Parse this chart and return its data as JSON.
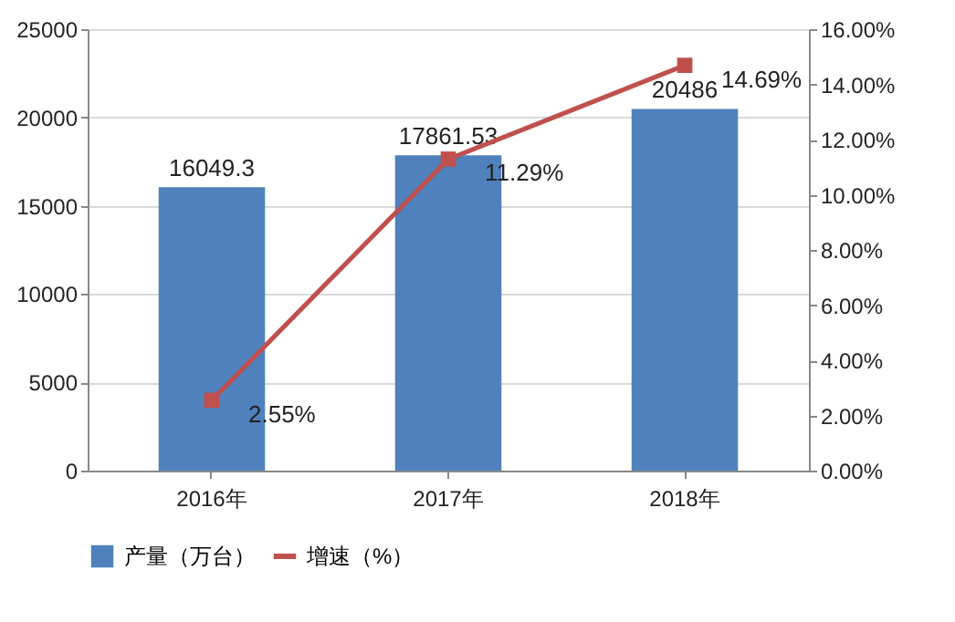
{
  "chart_data": {
    "type": "bar",
    "categories": [
      "2016年",
      "2017年",
      "2018年"
    ],
    "series": [
      {
        "name": "产量（万台）",
        "color": "#4f81bd",
        "values": [
          16049.3,
          17861.53,
          20486
        ],
        "value_labels": [
          "16049.3",
          "17861.53",
          "20486"
        ]
      },
      {
        "name": "增速（%）",
        "type": "line",
        "axis": "y2",
        "color": "#c0504d",
        "values": [
          2.55,
          11.29,
          14.69
        ],
        "value_labels": [
          "2.55%",
          "11.29%",
          "14.69%"
        ]
      }
    ],
    "ylim": [
      0,
      25000
    ],
    "yticks": [
      0,
      5000,
      10000,
      15000,
      20000,
      25000
    ],
    "y2lim": [
      0,
      16
    ],
    "y2ticks": [
      {
        "value": 0,
        "label": "0.00%"
      },
      {
        "value": 2,
        "label": "2.00%"
      },
      {
        "value": 4,
        "label": "4.00%"
      },
      {
        "value": 6,
        "label": "6.00%"
      },
      {
        "value": 8,
        "label": "8.00%"
      },
      {
        "value": 10,
        "label": "10.00%"
      },
      {
        "value": 12,
        "label": "12.00%"
      },
      {
        "value": 14,
        "label": "14.00%"
      },
      {
        "value": 16,
        "label": "16.00%"
      }
    ],
    "grid": "y",
    "legend": "bottom",
    "marker": "square",
    "line_style": "solid"
  }
}
